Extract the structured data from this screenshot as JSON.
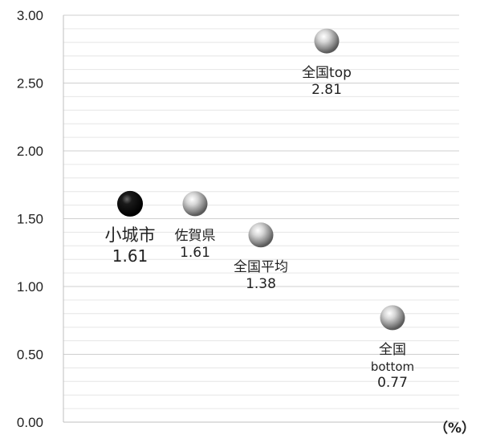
{
  "chart_data": {
    "type": "scatter",
    "title": "",
    "xlabel": "",
    "ylabel": "",
    "unit_label": "（%）",
    "ylim": [
      0,
      3.0
    ],
    "y_ticks": [
      "0.00",
      "0.50",
      "1.00",
      "1.50",
      "2.00",
      "2.50",
      "3.00"
    ],
    "grid": true,
    "points": [
      {
        "name": "小城市",
        "lines": [
          "小城市"
        ],
        "value": 1.61,
        "value_label": "1.61",
        "highlight": true,
        "x": 1
      },
      {
        "name": "佐賀県",
        "lines": [
          "佐賀県"
        ],
        "value": 1.61,
        "value_label": "1.61",
        "highlight": false,
        "x": 2
      },
      {
        "name": "全国平均",
        "lines": [
          "全国平均"
        ],
        "value": 1.38,
        "value_label": "1.38",
        "highlight": false,
        "x": 3
      },
      {
        "name": "全国top",
        "lines": [
          "全国top"
        ],
        "value": 2.81,
        "value_label": "2.81",
        "highlight": false,
        "x": 4
      },
      {
        "name": "全国bottom",
        "lines": [
          "全国",
          "bottom"
        ],
        "value": 0.77,
        "value_label": "0.77",
        "highlight": false,
        "x": 5
      }
    ],
    "colors": {
      "highlight": "#0a0a0a",
      "normal": "#a8a8a8",
      "grid": "#d9d9d9",
      "axis": "#bfbfbf"
    }
  }
}
